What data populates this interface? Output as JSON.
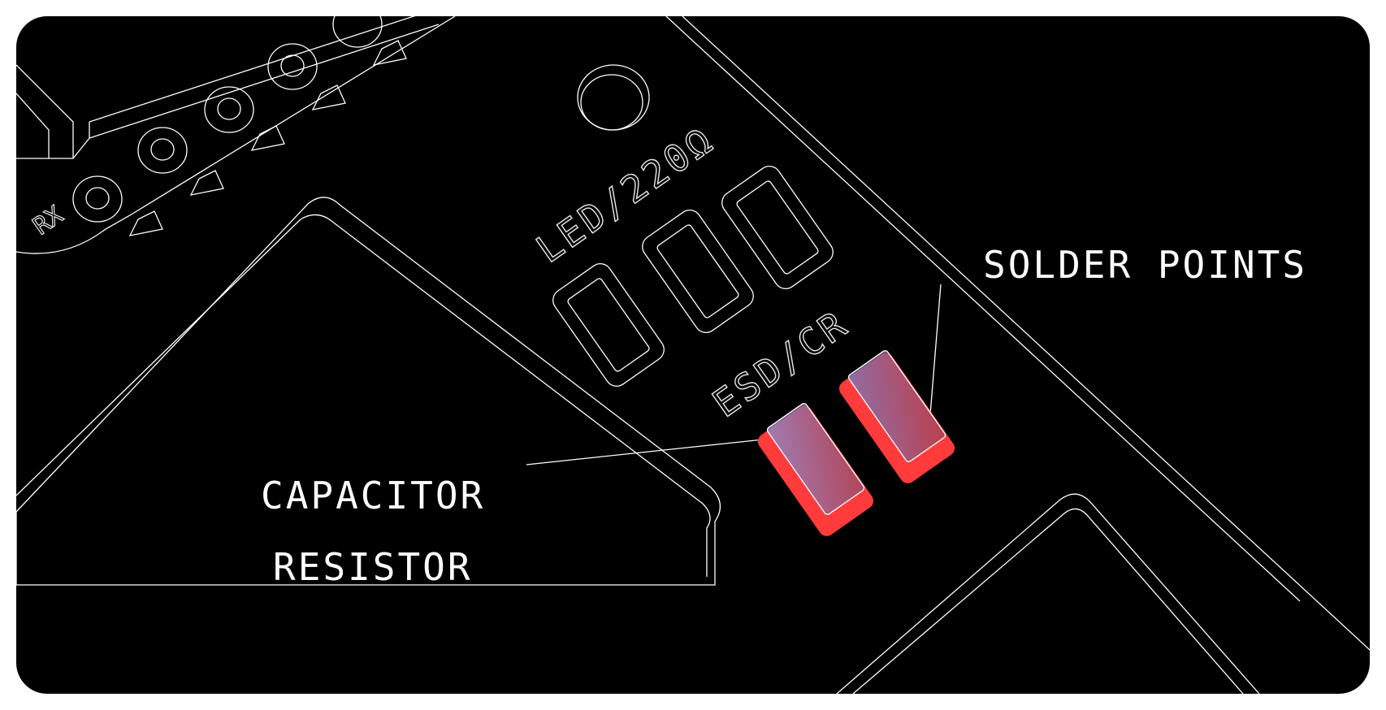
{
  "labels": {
    "solder_points": "SOLDER POINTS",
    "capacitor": "CAPACITOR",
    "resistor": "RESISTOR"
  },
  "silkscreen": {
    "led": "LED/220Ω",
    "esd": "ESD/CR",
    "rx": "RX"
  },
  "colors": {
    "background": "#000000",
    "outline": "#ffffff",
    "solder_pad": "#ff3b3b",
    "component_tint": "#7a6a9a"
  }
}
